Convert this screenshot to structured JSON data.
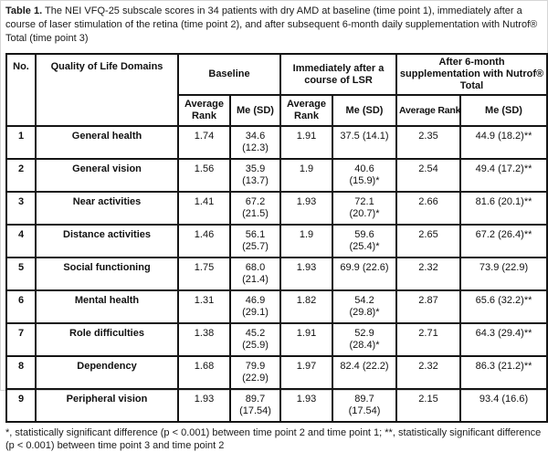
{
  "caption": {
    "label": "Table 1.",
    "text": " The NEI VFQ-25 subscale scores in 34 patients with dry AMD at baseline (time point 1), immediately after a course of laser stimulation of the retina (time point 2), and after subsequent 6-month daily supplementation with Nutrof® Total (time point 3)"
  },
  "table": {
    "headers": {
      "no": "No.",
      "domains": "Quality of Life Domains",
      "groups": [
        {
          "label": "Baseline",
          "sub": [
            "Average Rank",
            "Me (SD)"
          ]
        },
        {
          "label": "Immediately after a course of LSR",
          "sub": [
            "Average Rank",
            "Me (SD)"
          ]
        },
        {
          "label": "After 6-month supplementation with Nutrof® Total",
          "sub": [
            "Average Rank",
            "Me (SD)"
          ]
        }
      ]
    },
    "rows": [
      [
        "1",
        "General health",
        "1.74",
        "34.6\n(12.3)",
        "1.91",
        "37.5 (14.1)",
        "2.35",
        "44.9 (18.2)**"
      ],
      [
        "2",
        "General vision",
        "1.56",
        "35.9\n(13.7)",
        "1.9",
        "40.6\n(15.9)*",
        "2.54",
        "49.4 (17.2)**"
      ],
      [
        "3",
        "Near activities",
        "1.41",
        "67.2\n(21.5)",
        "1.93",
        "72.1\n(20.7)*",
        "2.66",
        "81.6 (20.1)**"
      ],
      [
        "4",
        "Distance activities",
        "1.46",
        "56.1\n(25.7)",
        "1.9",
        "59.6\n(25.4)*",
        "2.65",
        "67.2 (26.4)**"
      ],
      [
        "5",
        "Social functioning",
        "1.75",
        "68.0\n(21.4)",
        "1.93",
        "69.9 (22.6)",
        "2.32",
        "73.9 (22.9)"
      ],
      [
        "6",
        "Mental health",
        "1.31",
        "46.9\n(29.1)",
        "1.82",
        "54.2\n(29.8)*",
        "2.87",
        "65.6 (32.2)**"
      ],
      [
        "7",
        "Role difficulties",
        "1.38",
        "45.2\n(25.9)",
        "1.91",
        "52.9\n(28.4)*",
        "2.71",
        "64.3 (29.4)**"
      ],
      [
        "8",
        "Dependency",
        "1.68",
        "79.9\n(22.9)",
        "1.97",
        "82.4 (22.2)",
        "2.32",
        "86.3 (21.2)**"
      ],
      [
        "9",
        "Peripheral vision",
        "1.93",
        "89.7\n(17.54)",
        "1.93",
        "89.7\n(17.54)",
        "2.15",
        "93.4 (16.6)"
      ]
    ]
  },
  "footnote": "*, statistically significant difference (p < 0.001) between time point 2 and time point 1; **, statistically significant difference (p < 0.001) between time point 3 and time point 2",
  "chart_data": {
    "type": "table",
    "title": "Table 1. The NEI VFQ-25 subscale scores in 34 patients with dry AMD at baseline (time point 1), immediately after a course of laser stimulation of the retina (time point 2), and after subsequent 6-month daily supplementation with Nutrof® Total (time point 3)",
    "columns": [
      "No.",
      "Quality of Life Domains",
      "Baseline Average Rank",
      "Baseline Me (SD)",
      "Immediately after a course of LSR Average Rank",
      "Immediately after a course of LSR Me (SD)",
      "After 6-month supplementation with Nutrof® Total Average Rank",
      "After 6-month supplementation with Nutrof® Total Me (SD)"
    ],
    "rows": [
      [
        "1",
        "General health",
        "1.74",
        "34.6 (12.3)",
        "1.91",
        "37.5 (14.1)",
        "2.35",
        "44.9 (18.2)**"
      ],
      [
        "2",
        "General vision",
        "1.56",
        "35.9 (13.7)",
        "1.9",
        "40.6 (15.9)*",
        "2.54",
        "49.4 (17.2)**"
      ],
      [
        "3",
        "Near activities",
        "1.41",
        "67.2 (21.5)",
        "1.93",
        "72.1 (20.7)*",
        "2.66",
        "81.6 (20.1)**"
      ],
      [
        "4",
        "Distance activities",
        "1.46",
        "56.1 (25.7)",
        "1.9",
        "59.6 (25.4)*",
        "2.65",
        "67.2 (26.4)**"
      ],
      [
        "5",
        "Social functioning",
        "1.75",
        "68.0 (21.4)",
        "1.93",
        "69.9 (22.6)",
        "2.32",
        "73.9 (22.9)"
      ],
      [
        "6",
        "Mental health",
        "1.31",
        "46.9 (29.1)",
        "1.82",
        "54.2 (29.8)*",
        "2.87",
        "65.6 (32.2)**"
      ],
      [
        "7",
        "Role difficulties",
        "1.38",
        "45.2 (25.9)",
        "1.91",
        "52.9 (28.4)*",
        "2.71",
        "64.3 (29.4)**"
      ],
      [
        "8",
        "Dependency",
        "1.68",
        "79.9 (22.9)",
        "1.97",
        "82.4 (22.2)",
        "2.32",
        "86.3 (21.2)**"
      ],
      [
        "9",
        "Peripheral vision",
        "1.93",
        "89.7 (17.54)",
        "1.93",
        "89.7 (17.54)",
        "2.15",
        "93.4 (16.6)"
      ]
    ]
  }
}
